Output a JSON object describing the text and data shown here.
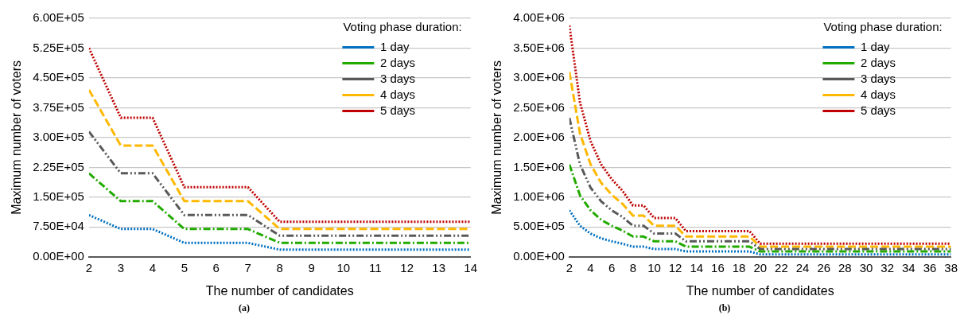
{
  "chart_data": [
    {
      "type": "line",
      "xlabel": "The number of candidates",
      "ylabel": "Maximum number of voters",
      "legend_title": "Voting phase duration:",
      "legend": "top right",
      "grid": "y",
      "marker": "none",
      "annotations": [
        "(a)"
      ],
      "x": [
        2,
        3,
        4,
        5,
        6,
        7,
        8,
        9,
        10,
        11,
        12,
        13,
        14
      ],
      "xlim": [
        2,
        14
      ],
      "xticks": [
        2,
        3,
        4,
        5,
        6,
        7,
        8,
        9,
        10,
        11,
        12,
        13,
        14
      ],
      "ylim": [
        0,
        600000
      ],
      "yticks": [
        {
          "value": 0,
          "label": "0.00E+00"
        },
        {
          "value": 75000,
          "label": "7.50E+04"
        },
        {
          "value": 150000,
          "label": "1.50E+05"
        },
        {
          "value": 225000,
          "label": "2.25E+05"
        },
        {
          "value": 300000,
          "label": "3.00E+05"
        },
        {
          "value": 375000,
          "label": "3.75E+05"
        },
        {
          "value": 450000,
          "label": "4.50E+05"
        },
        {
          "value": 525000,
          "label": "5.25E+05"
        },
        {
          "value": 600000,
          "label": "6.00E+05"
        }
      ],
      "series": [
        {
          "name": "1 day",
          "color": "#0070c0",
          "line_style": "dotted",
          "values": [
            105000,
            70000,
            70000,
            35000,
            35000,
            35000,
            18000,
            18000,
            18000,
            18000,
            18000,
            18000,
            18000
          ]
        },
        {
          "name": "2 days",
          "color": "#22aa00",
          "line_style": "dashdot",
          "values": [
            210000,
            140000,
            140000,
            70000,
            70000,
            70000,
            35000,
            35000,
            35000,
            35000,
            35000,
            35000,
            35000
          ]
        },
        {
          "name": "3 days",
          "color": "#595959",
          "line_style": "dashdotdot",
          "values": [
            315000,
            210000,
            210000,
            105000,
            105000,
            105000,
            53000,
            53000,
            53000,
            53000,
            53000,
            53000,
            53000
          ]
        },
        {
          "name": "4 days",
          "color": "#ffb800",
          "line_style": "dashed",
          "values": [
            420000,
            280000,
            280000,
            140000,
            140000,
            140000,
            70000,
            70000,
            70000,
            70000,
            70000,
            70000,
            70000
          ]
        },
        {
          "name": "5 days",
          "color": "#c00000",
          "line_style": "dotted",
          "values": [
            525000,
            350000,
            350000,
            175000,
            175000,
            175000,
            88000,
            88000,
            88000,
            88000,
            88000,
            88000,
            88000
          ]
        }
      ]
    },
    {
      "type": "line",
      "xlabel": "The number of candidates",
      "ylabel": "Maximum number of voters",
      "legend_title": "Voting phase duration:",
      "legend": "top right",
      "grid": "y",
      "marker": "none",
      "annotations": [
        "(b)"
      ],
      "x": [
        2,
        3,
        4,
        5,
        6,
        7,
        8,
        9,
        10,
        11,
        12,
        13,
        14,
        15,
        16,
        17,
        18,
        19,
        20,
        21,
        22,
        23,
        24,
        25,
        26,
        27,
        28,
        29,
        30,
        31,
        32,
        33,
        34,
        35,
        36,
        37,
        38
      ],
      "xlim": [
        2,
        38
      ],
      "xticks": [
        2,
        4,
        6,
        8,
        10,
        12,
        14,
        16,
        18,
        20,
        22,
        24,
        26,
        28,
        30,
        32,
        34,
        36,
        38
      ],
      "ylim": [
        0,
        4000000
      ],
      "yticks": [
        {
          "value": 0,
          "label": "0.00E+00"
        },
        {
          "value": 500000,
          "label": "5.00E+05"
        },
        {
          "value": 1000000,
          "label": "1.00E+06"
        },
        {
          "value": 1500000,
          "label": "1.50E+06"
        },
        {
          "value": 2000000,
          "label": "2.00E+06"
        },
        {
          "value": 2500000,
          "label": "2.50E+06"
        },
        {
          "value": 3000000,
          "label": "3.00E+06"
        },
        {
          "value": 3500000,
          "label": "3.50E+06"
        },
        {
          "value": 4000000,
          "label": "4.00E+06"
        }
      ],
      "series": [
        {
          "name": "1 day",
          "color": "#0070c0",
          "line_style": "dotted",
          "values": [
            780000,
            520000,
            390000,
            310000,
            260000,
            220000,
            170000,
            170000,
            130000,
            130000,
            130000,
            90000,
            90000,
            90000,
            90000,
            90000,
            90000,
            90000,
            40000,
            40000,
            40000,
            40000,
            40000,
            40000,
            40000,
            40000,
            40000,
            40000,
            40000,
            40000,
            40000,
            40000,
            40000,
            40000,
            40000,
            40000,
            40000
          ]
        },
        {
          "name": "2 days",
          "color": "#22aa00",
          "line_style": "dashdot",
          "values": [
            1550000,
            1030000,
            780000,
            620000,
            520000,
            440000,
            340000,
            340000,
            260000,
            260000,
            260000,
            170000,
            170000,
            170000,
            170000,
            170000,
            170000,
            170000,
            90000,
            90000,
            90000,
            90000,
            90000,
            90000,
            90000,
            90000,
            90000,
            90000,
            90000,
            90000,
            90000,
            90000,
            90000,
            90000,
            90000,
            90000,
            90000
          ]
        },
        {
          "name": "3 days",
          "color": "#595959",
          "line_style": "dashdotdot",
          "values": [
            2330000,
            1550000,
            1160000,
            930000,
            780000,
            670000,
            520000,
            520000,
            390000,
            390000,
            390000,
            260000,
            260000,
            260000,
            260000,
            260000,
            260000,
            260000,
            130000,
            130000,
            130000,
            130000,
            130000,
            130000,
            130000,
            130000,
            130000,
            130000,
            130000,
            130000,
            130000,
            130000,
            130000,
            130000,
            130000,
            130000,
            130000
          ]
        },
        {
          "name": "4 days",
          "color": "#ffb800",
          "line_style": "dashed",
          "values": [
            3100000,
            2070000,
            1550000,
            1240000,
            1040000,
            890000,
            690000,
            690000,
            520000,
            520000,
            520000,
            340000,
            340000,
            340000,
            340000,
            340000,
            340000,
            340000,
            170000,
            170000,
            170000,
            170000,
            170000,
            170000,
            170000,
            170000,
            170000,
            170000,
            170000,
            170000,
            170000,
            170000,
            170000,
            170000,
            170000,
            170000,
            170000
          ]
        },
        {
          "name": "5 days",
          "color": "#c00000",
          "line_style": "dotted",
          "values": [
            3880000,
            2590000,
            1940000,
            1550000,
            1300000,
            1110000,
            860000,
            860000,
            650000,
            650000,
            650000,
            430000,
            430000,
            430000,
            430000,
            430000,
            430000,
            430000,
            220000,
            220000,
            220000,
            220000,
            220000,
            220000,
            220000,
            220000,
            220000,
            220000,
            220000,
            220000,
            220000,
            220000,
            220000,
            220000,
            220000,
            220000,
            220000
          ]
        }
      ]
    }
  ]
}
